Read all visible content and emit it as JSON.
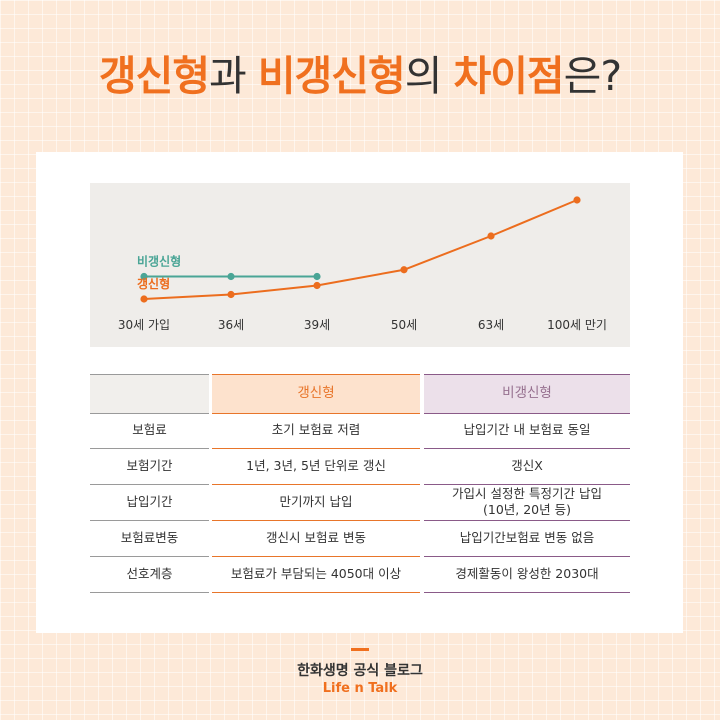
{
  "title": {
    "part1": "갱신형",
    "part2": "과 ",
    "part3": "비갱신형",
    "part4": "의 ",
    "part5": "차이점",
    "part6": "은?"
  },
  "colors": {
    "accent": "#f0701f",
    "renewable_line": "#ec6d1e",
    "non_renewable_line": "#4aa596",
    "purple": "#96708f"
  },
  "chart_data": {
    "type": "line",
    "categories": [
      "30세 가입",
      "36세",
      "39세",
      "50세",
      "63세",
      "100세 만기"
    ],
    "series": [
      {
        "name": "비갱신형",
        "values": [
          1,
          1,
          1,
          null,
          null,
          null
        ],
        "color": "#4aa596"
      },
      {
        "name": "갱신형",
        "values": [
          0,
          0.2,
          0.6,
          1.3,
          2.8,
          4.4
        ],
        "color": "#ec6d1e"
      }
    ],
    "title": "",
    "xlabel": "",
    "ylabel": ""
  },
  "table": {
    "headers": [
      "",
      "갱신형",
      "비갱신형"
    ],
    "rows": [
      [
        "보험료",
        "초기 보험료 저렴",
        "납입기간 내 보험료 동일"
      ],
      [
        "보험기간",
        "1년, 3년, 5년 단위로 갱신",
        "갱신X"
      ],
      [
        "납입기간",
        "만기까지 납입",
        "가입시 설정한 특정기간 납입\n(10년, 20년 등)"
      ],
      [
        "보험료변동",
        "갱신시 보험료 변동",
        "납입기간보험료 변동 없음"
      ],
      [
        "선호계층",
        "보험료가 부담되는 4050대 이상",
        "경제활동이 왕성한 2030대"
      ]
    ]
  },
  "footer": {
    "brand": "한화생명 공식 블로그",
    "sub": "Life n Talk"
  }
}
